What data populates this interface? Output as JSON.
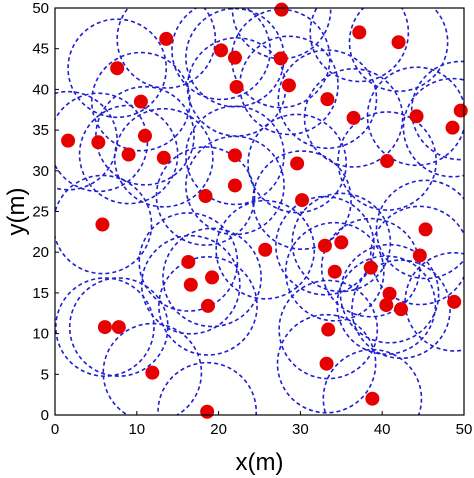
{
  "chart_data": {
    "type": "scatter",
    "xlabel": "x(m)",
    "ylabel": "y(m)",
    "xlim": [
      0,
      50
    ],
    "ylim": [
      0,
      50
    ],
    "xticks": [
      "0",
      "10",
      "20",
      "30",
      "40",
      "50"
    ],
    "yticks": [
      "0",
      "5",
      "10",
      "15",
      "20",
      "25",
      "30",
      "35",
      "40",
      "45",
      "50"
    ],
    "grid": false,
    "circle_radius": 6,
    "colors": {
      "points": "#e60000",
      "circles": "#1f1fd0"
    },
    "points": [
      {
        "x": 27.7,
        "y": 49.8
      },
      {
        "x": 37.2,
        "y": 47.0
      },
      {
        "x": 42.0,
        "y": 45.8
      },
      {
        "x": 13.6,
        "y": 46.2
      },
      {
        "x": 20.3,
        "y": 44.8
      },
      {
        "x": 22.0,
        "y": 43.9
      },
      {
        "x": 27.6,
        "y": 43.8
      },
      {
        "x": 7.6,
        "y": 42.6
      },
      {
        "x": 22.2,
        "y": 40.3
      },
      {
        "x": 28.6,
        "y": 40.5
      },
      {
        "x": 10.5,
        "y": 38.5
      },
      {
        "x": 33.3,
        "y": 38.8
      },
      {
        "x": 49.6,
        "y": 37.4
      },
      {
        "x": 36.5,
        "y": 36.5
      },
      {
        "x": 44.2,
        "y": 36.7
      },
      {
        "x": 48.6,
        "y": 35.3
      },
      {
        "x": 11.0,
        "y": 34.3
      },
      {
        "x": 1.6,
        "y": 33.7
      },
      {
        "x": 5.3,
        "y": 33.5
      },
      {
        "x": 9.0,
        "y": 32.0
      },
      {
        "x": 13.3,
        "y": 31.6
      },
      {
        "x": 22.0,
        "y": 31.9
      },
      {
        "x": 40.6,
        "y": 31.2
      },
      {
        "x": 29.6,
        "y": 30.9
      },
      {
        "x": 22.0,
        "y": 28.2
      },
      {
        "x": 18.4,
        "y": 26.9
      },
      {
        "x": 30.2,
        "y": 26.4
      },
      {
        "x": 5.8,
        "y": 23.4
      },
      {
        "x": 45.3,
        "y": 22.8
      },
      {
        "x": 35.0,
        "y": 21.2
      },
      {
        "x": 33.0,
        "y": 20.8
      },
      {
        "x": 25.7,
        "y": 20.3
      },
      {
        "x": 44.6,
        "y": 19.6
      },
      {
        "x": 16.3,
        "y": 18.8
      },
      {
        "x": 38.6,
        "y": 18.1
      },
      {
        "x": 34.2,
        "y": 17.6
      },
      {
        "x": 19.2,
        "y": 16.9
      },
      {
        "x": 16.6,
        "y": 16.0
      },
      {
        "x": 40.9,
        "y": 14.9
      },
      {
        "x": 40.5,
        "y": 13.5
      },
      {
        "x": 18.7,
        "y": 13.4
      },
      {
        "x": 42.3,
        "y": 13.0
      },
      {
        "x": 48.8,
        "y": 13.9
      },
      {
        "x": 6.1,
        "y": 10.8
      },
      {
        "x": 7.8,
        "y": 10.8
      },
      {
        "x": 33.4,
        "y": 10.5
      },
      {
        "x": 33.2,
        "y": 6.3
      },
      {
        "x": 11.9,
        "y": 5.2
      },
      {
        "x": 38.8,
        "y": 2.0
      },
      {
        "x": 18.6,
        "y": 0.4
      }
    ]
  }
}
